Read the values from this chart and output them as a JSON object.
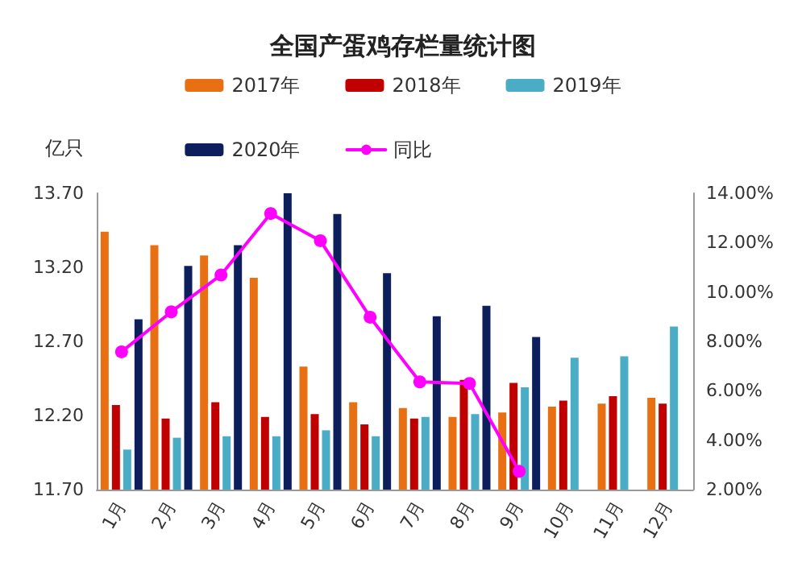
{
  "chart_data": {
    "type": "bar",
    "title": "全国产蛋鸡存栏量统计图",
    "ylabel": "亿只",
    "categories": [
      "1月",
      "2月",
      "3月",
      "4月",
      "5月",
      "6月",
      "7月",
      "8月",
      "9月",
      "10月",
      "11月",
      "12月"
    ],
    "series": [
      {
        "name": "2017年",
        "color": "#e97012",
        "values": [
          13.44,
          13.35,
          13.28,
          13.13,
          12.53,
          12.29,
          12.25,
          12.19,
          12.22,
          12.26,
          12.28,
          12.32
        ]
      },
      {
        "name": "2018年",
        "color": "#c00000",
        "values": [
          12.27,
          12.18,
          12.29,
          12.19,
          12.21,
          12.14,
          12.18,
          12.44,
          12.42,
          12.3,
          12.33,
          12.28
        ]
      },
      {
        "name": "2019年",
        "color": "#4bacc6",
        "values": [
          11.97,
          12.05,
          12.06,
          12.06,
          12.1,
          12.06,
          12.19,
          12.21,
          12.39,
          12.59,
          12.6,
          12.8
        ]
      },
      {
        "name": "2020年",
        "color": "#0c1f5c",
        "values": [
          12.85,
          13.21,
          13.35,
          13.7,
          13.56,
          13.16,
          12.87,
          12.94,
          12.73,
          null,
          null,
          null
        ]
      },
      {
        "name": "同比",
        "type": "line",
        "axis": "y2",
        "color": "#ff00ff",
        "marker": "circle",
        "values": [
          7.58,
          9.2,
          10.69,
          13.18,
          12.08,
          8.98,
          6.36,
          6.3,
          2.74,
          null,
          null,
          null
        ]
      }
    ],
    "ylim": [
      11.7,
      13.7
    ],
    "yticks": [
      {
        "value": 11.7,
        "label": "11.70"
      },
      {
        "value": 12.2,
        "label": "12.20"
      },
      {
        "value": 12.7,
        "label": "12.70"
      },
      {
        "value": 13.2,
        "label": "13.20"
      },
      {
        "value": 13.7,
        "label": "13.70"
      }
    ],
    "y2lim": [
      2,
      14
    ],
    "y2ticks": [
      {
        "value": 2,
        "label": "2.00%"
      },
      {
        "value": 4,
        "label": "4.00%"
      },
      {
        "value": 6,
        "label": "6.00%"
      },
      {
        "value": 8,
        "label": "8.00%"
      },
      {
        "value": 10,
        "label": "10.00%"
      },
      {
        "value": 12,
        "label": "12.00%"
      },
      {
        "value": 14,
        "label": "14.00%"
      }
    ],
    "grid": false,
    "legend": "top"
  }
}
